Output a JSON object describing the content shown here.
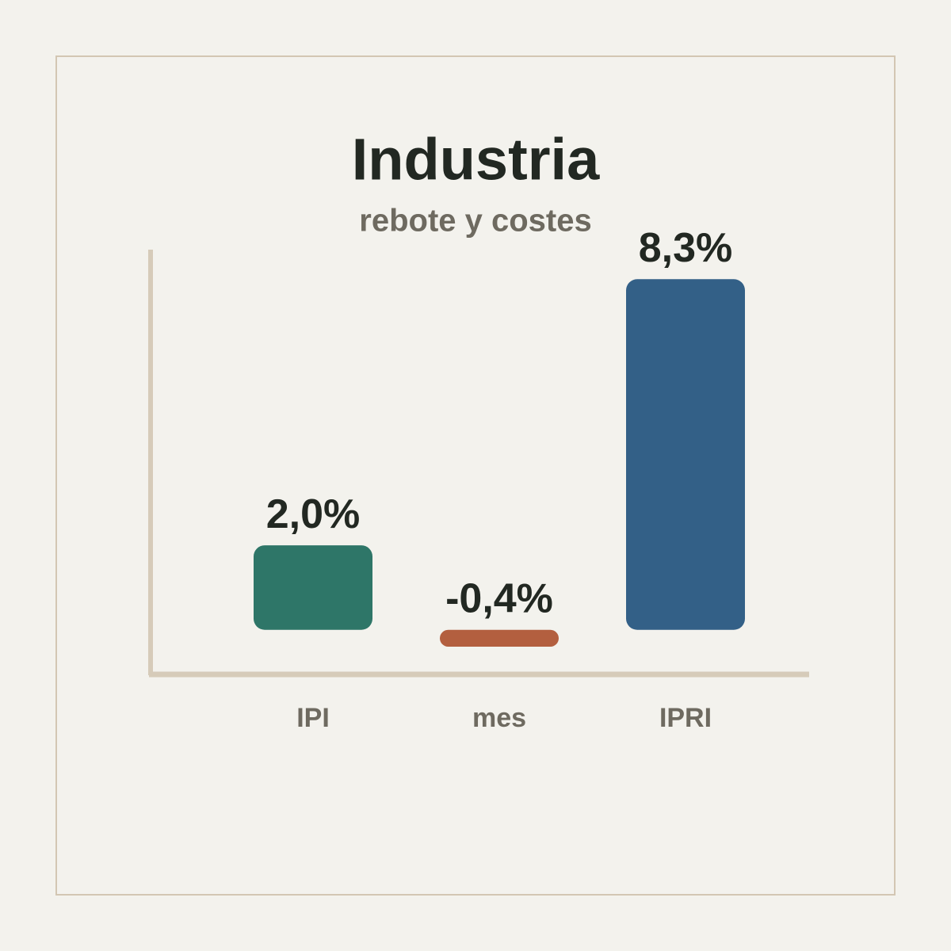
{
  "chart_data": {
    "type": "bar",
    "title": "Industria",
    "subtitle": "rebote y costes",
    "categories": [
      "IPI",
      "mes",
      "IPRI"
    ],
    "values": [
      2.0,
      -0.4,
      8.3
    ],
    "value_labels": [
      "2,0%",
      "-0,4%",
      "8,3%"
    ],
    "colors": [
      "#2e7668",
      "#b35f3f",
      "#336087"
    ],
    "ylim": [
      -1,
      9
    ]
  }
}
